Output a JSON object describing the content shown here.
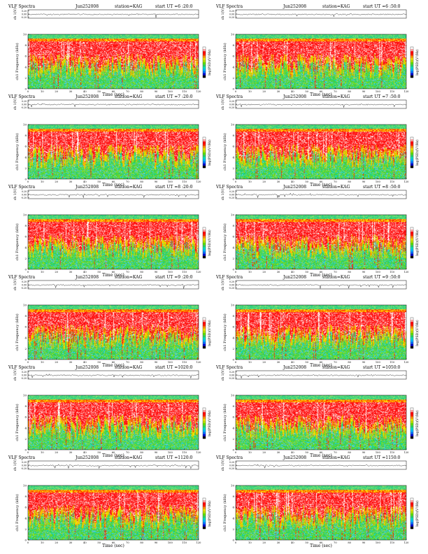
{
  "page": {
    "title_prefix": "VLF Spectra",
    "colors": {
      "colormap": [
        "#000000",
        "#0000cc",
        "#0070ff",
        "#00b8ff",
        "#00e0c0",
        "#30d060",
        "#60e000",
        "#b8e000",
        "#f0e000",
        "#ff9000",
        "#ff2000",
        "#ff0000",
        "#ffa0a0",
        "#ffffff"
      ],
      "trace": "#000000"
    }
  },
  "chart_data": [
    {
      "type": "heatmap",
      "title_left": "VLF Spectra",
      "date": "Jun252008",
      "station": "station=KAG",
      "start_ut": "start  UT =6 :20:0",
      "top_ylabel": "ch 1(V)",
      "top_yticks": [
        "0.20",
        "0.00",
        "-0.20"
      ],
      "xlabel": "Time (sec)",
      "ylabel": "ch1\nFrequency (kHz)",
      "cbar_label": "log(PSD)(V²/Hz)",
      "xlim": [
        0,
        120
      ],
      "ylim": [
        0,
        10
      ],
      "xticks": [
        "0",
        "10",
        "20",
        "30",
        "40",
        "50",
        "60",
        "70",
        "80",
        "90",
        "100",
        "110",
        "120"
      ],
      "yticks": [
        "0",
        "2",
        "4",
        "6",
        "8",
        "10"
      ]
    },
    {
      "type": "heatmap",
      "title_left": "VLF Spectra",
      "date": "Jun252008",
      "station": "station=KAG",
      "start_ut": "start  UT =6 :50:0",
      "top_ylabel": "ch 1(V)",
      "top_yticks": [
        "0.20",
        "0.00",
        "-0.20"
      ],
      "xlabel": "Time (sec)",
      "ylabel": "ch1\nFrequency (kHz)",
      "cbar_label": "log(PSD)(V²/Hz)",
      "xlim": [
        0,
        120
      ],
      "ylim": [
        0,
        10
      ],
      "xticks": [
        "0",
        "10",
        "20",
        "30",
        "40",
        "50",
        "60",
        "70",
        "80",
        "90",
        "100",
        "110",
        "120"
      ],
      "yticks": [
        "0",
        "2",
        "4",
        "6",
        "8",
        "10"
      ]
    },
    {
      "type": "heatmap",
      "title_left": "VLF Spectra",
      "date": "Jun252008",
      "station": "station=KAG",
      "start_ut": "start  UT =7 :20:0",
      "top_ylabel": "ch 1(V)",
      "top_yticks": [
        "0.20",
        "0.00",
        "-0.20"
      ],
      "xlabel": "Time (sec)",
      "ylabel": "ch1\nFrequency (kHz)",
      "cbar_label": "log(PSD)(V²/Hz)",
      "xlim": [
        0,
        120
      ],
      "ylim": [
        0,
        10
      ],
      "xticks": [
        "0",
        "10",
        "20",
        "30",
        "40",
        "50",
        "60",
        "70",
        "80",
        "90",
        "100",
        "110",
        "120"
      ],
      "yticks": [
        "0",
        "2",
        "4",
        "6",
        "8",
        "10"
      ]
    },
    {
      "type": "heatmap",
      "title_left": "VLF Spectra",
      "date": "Jun252008",
      "station": "station=KAG",
      "start_ut": "start  UT =7 :50:0",
      "top_ylabel": "ch 1(V)",
      "top_yticks": [
        "0.20",
        "0.00",
        "-0.20"
      ],
      "xlabel": "Time (sec)",
      "ylabel": "ch1\nFrequency (kHz)",
      "cbar_label": "log(PSD)(V²/Hz)",
      "xlim": [
        0,
        120
      ],
      "ylim": [
        0,
        10
      ],
      "xticks": [
        "0",
        "10",
        "20",
        "30",
        "40",
        "50",
        "60",
        "70",
        "80",
        "90",
        "100",
        "110",
        "120"
      ],
      "yticks": [
        "0",
        "2",
        "4",
        "6",
        "8",
        "10"
      ]
    },
    {
      "type": "heatmap",
      "title_left": "VLF Spectra",
      "date": "Jun252008",
      "station": "station=KAG",
      "start_ut": "start  UT =8 :20:0",
      "top_ylabel": "ch 1(V)",
      "top_yticks": [
        "0.20",
        "0.00",
        "-0.20"
      ],
      "xlabel": "Time (sec)",
      "ylabel": "ch1\nFrequency (kHz)",
      "cbar_label": "log(PSD)(V²/Hz)",
      "xlim": [
        0,
        120
      ],
      "ylim": [
        0,
        10
      ],
      "xticks": [
        "0",
        "10",
        "20",
        "30",
        "40",
        "50",
        "60",
        "70",
        "80",
        "90",
        "100",
        "110",
        "120"
      ],
      "yticks": [
        "0",
        "2",
        "4",
        "6",
        "8",
        "10"
      ]
    },
    {
      "type": "heatmap",
      "title_left": "VLF Spectra",
      "date": "Jun252008",
      "station": "station=KAG",
      "start_ut": "start  UT =8 :50:0",
      "top_ylabel": "ch 1(V)",
      "top_yticks": [
        "0.20",
        "0.00",
        "-0.20"
      ],
      "xlabel": "Time (sec)",
      "ylabel": "ch1\nFrequency (kHz)",
      "cbar_label": "log(PSD)(V²/Hz)",
      "xlim": [
        0,
        120
      ],
      "ylim": [
        0,
        10
      ],
      "xticks": [
        "0",
        "10",
        "20",
        "30",
        "40",
        "50",
        "60",
        "70",
        "80",
        "90",
        "100",
        "110",
        "120"
      ],
      "yticks": [
        "0",
        "2",
        "4",
        "6",
        "8",
        "10"
      ]
    },
    {
      "type": "heatmap",
      "title_left": "VLF Spectra",
      "date": "Jun252008",
      "station": "station=KAG",
      "start_ut": "start  UT =9 :20:0",
      "top_ylabel": "ch 1(V)",
      "top_yticks": [
        "0.20",
        "0.00",
        "-0.20"
      ],
      "xlabel": "Time (sec)",
      "ylabel": "ch1\nFrequency (kHz)",
      "cbar_label": "log(PSD)(V²/Hz)",
      "xlim": [
        0,
        120
      ],
      "ylim": [
        0,
        10
      ],
      "xticks": [
        "0",
        "10",
        "20",
        "30",
        "40",
        "50",
        "60",
        "70",
        "80",
        "90",
        "100",
        "110",
        "120"
      ],
      "yticks": [
        "0",
        "2",
        "4",
        "6",
        "8",
        "10"
      ]
    },
    {
      "type": "heatmap",
      "title_left": "VLF Spectra",
      "date": "Jun252008",
      "station": "station=KAG",
      "start_ut": "start  UT =9 :50:0",
      "top_ylabel": "ch 1(V)",
      "top_yticks": [
        "0.20",
        "0.00",
        "-0.20"
      ],
      "xlabel": "Time (sec)",
      "ylabel": "ch1\nFrequency (kHz)",
      "cbar_label": "log(PSD)(V²/Hz)",
      "xlim": [
        0,
        120
      ],
      "ylim": [
        0,
        10
      ],
      "xticks": [
        "0",
        "10",
        "20",
        "30",
        "40",
        "50",
        "60",
        "70",
        "80",
        "90",
        "100",
        "110",
        "120"
      ],
      "yticks": [
        "0",
        "2",
        "4",
        "6",
        "8",
        "10"
      ]
    },
    {
      "type": "heatmap",
      "title_left": "VLF Spectra",
      "date": "Jun252008",
      "station": "station=KAG",
      "start_ut": "start  UT =1020:0",
      "top_ylabel": "ch 1(V)",
      "top_yticks": [
        "0.20",
        "0.00",
        "-0.20"
      ],
      "xlabel": "Time (sec)",
      "ylabel": "ch1\nFrequency (kHz)",
      "cbar_label": "log(PSD)(V²/Hz)",
      "xlim": [
        0,
        120
      ],
      "ylim": [
        0,
        10
      ],
      "xticks": [
        "0",
        "10",
        "20",
        "30",
        "40",
        "50",
        "60",
        "70",
        "80",
        "90",
        "100",
        "110",
        "120"
      ],
      "yticks": [
        "0",
        "2",
        "4",
        "6",
        "8",
        "10"
      ]
    },
    {
      "type": "heatmap",
      "title_left": "VLF Spectra",
      "date": "Jun252008",
      "station": "station=KAG",
      "start_ut": "start  UT =1050:0",
      "top_ylabel": "ch 1(V)",
      "top_yticks": [
        "0.20",
        "0.00",
        "-0.20"
      ],
      "xlabel": "Time (sec)",
      "ylabel": "ch1\nFrequency (kHz)",
      "cbar_label": "log(PSD)(V²/Hz)",
      "xlim": [
        0,
        120
      ],
      "ylim": [
        0,
        10
      ],
      "xticks": [
        "0",
        "10",
        "20",
        "30",
        "40",
        "50",
        "60",
        "70",
        "80",
        "90",
        "100",
        "110",
        "120"
      ],
      "yticks": [
        "0",
        "2",
        "4",
        "6",
        "8",
        "10"
      ]
    },
    {
      "type": "heatmap",
      "title_left": "VLF Spectra",
      "date": "Jun252008",
      "station": "station=KAG",
      "start_ut": "start  UT =1120:0",
      "top_ylabel": "ch 1(V)",
      "top_yticks": [
        "0.20",
        "0.00",
        "-0.20"
      ],
      "xlabel": "Time (sec)",
      "ylabel": "ch1\nFrequency (kHz)",
      "cbar_label": "log(PSD)(V²/Hz)",
      "xlim": [
        0,
        120
      ],
      "ylim": [
        0,
        10
      ],
      "xticks": [
        "0",
        "10",
        "20",
        "30",
        "40",
        "50",
        "60",
        "70",
        "80",
        "90",
        "100",
        "110",
        "120"
      ],
      "yticks": [
        "0",
        "2",
        "4",
        "6",
        "8",
        "10"
      ]
    },
    {
      "type": "heatmap",
      "title_left": "VLF Spectra",
      "date": "Jun252008",
      "station": "station=KAG",
      "start_ut": "start  UT =1150:0",
      "top_ylabel": "ch 1(V)",
      "top_yticks": [
        "0.20",
        "0.00",
        "-0.20"
      ],
      "xlabel": "Time (sec)",
      "ylabel": "ch1\nFrequency (kHz)",
      "cbar_label": "log(PSD)(V²/Hz)",
      "xlim": [
        0,
        120
      ],
      "ylim": [
        0,
        10
      ],
      "xticks": [
        "0",
        "10",
        "20",
        "30",
        "40",
        "50",
        "60",
        "70",
        "80",
        "90",
        "100",
        "110",
        "120"
      ],
      "yticks": [
        "0",
        "2",
        "4",
        "6",
        "8",
        "10"
      ]
    }
  ]
}
